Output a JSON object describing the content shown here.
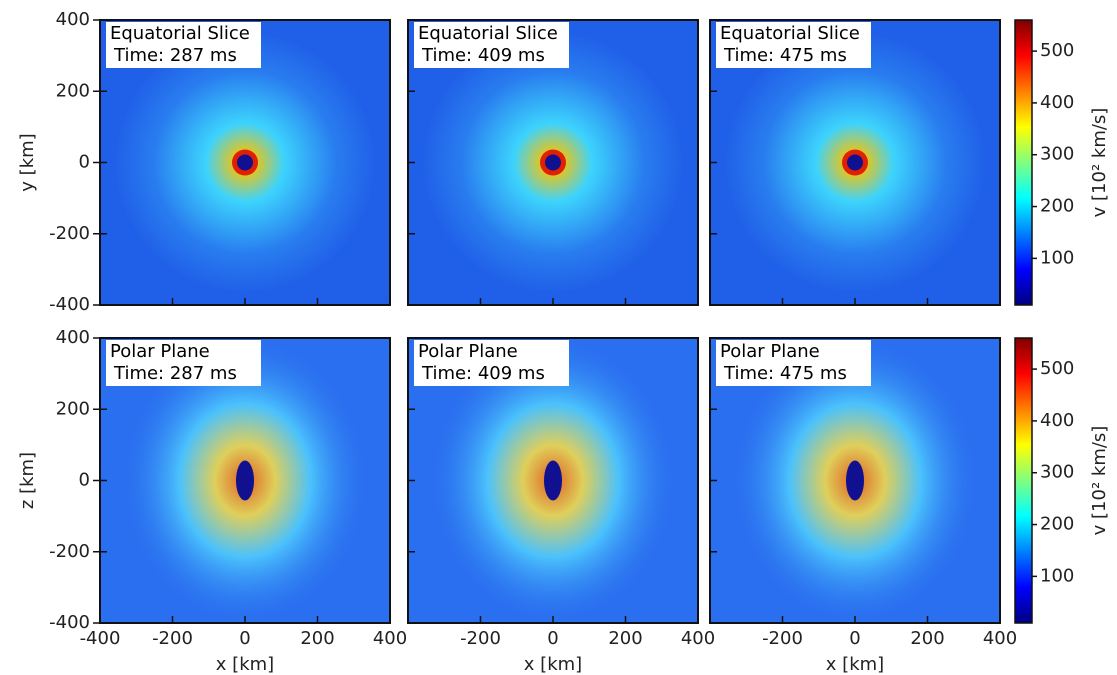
{
  "figure": {
    "panels": [
      {
        "title": "Equatorial Slice",
        "time": "Time: 287 ms"
      },
      {
        "title": "Equatorial Slice",
        "time": "Time: 409 ms"
      },
      {
        "title": "Equatorial Slice",
        "time": "Time: 475 ms"
      },
      {
        "title": "Polar Plane",
        "time": "Time: 287 ms"
      },
      {
        "title": "Polar Plane",
        "time": "Time: 409 ms"
      },
      {
        "title": "Polar Plane",
        "time": "Time: 475 ms"
      }
    ],
    "xlabel": "x [km]",
    "ylabels": [
      "y [km]",
      "z [km]"
    ],
    "xlim": [
      -400,
      400
    ],
    "ylim": [
      -400,
      400
    ],
    "xticks": [
      -400,
      -200,
      0,
      200,
      400
    ],
    "yticks": [
      -400,
      -200,
      0,
      200,
      400
    ],
    "colorbar": {
      "label": "v [10² km/s]",
      "lim": [
        10,
        560
      ],
      "ticks": [
        100,
        200,
        300,
        400,
        500
      ]
    }
  }
}
